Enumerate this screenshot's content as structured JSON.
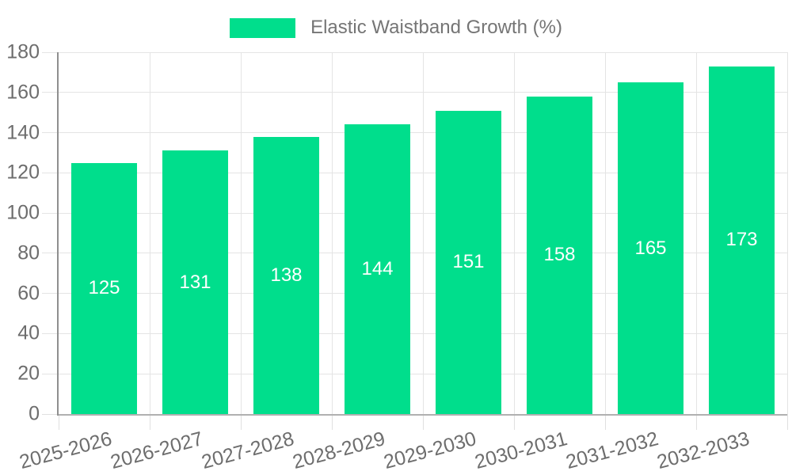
{
  "legend": {
    "label": "Elastic Waistband Growth (%)"
  },
  "colors": {
    "bar": "#00de8c",
    "bar_label": "#ffffff",
    "grid": "#e4e4e4",
    "tick": "#e0e0e0",
    "axis_y": "#8f8f8f",
    "axis_x": "#b0b0b0",
    "axis_label": "#6d6d6d",
    "legend_text": "#757575"
  },
  "chart_data": {
    "type": "bar",
    "title": "Elastic Waistband Growth (%)",
    "categories": [
      "2025-2026",
      "2026-2027",
      "2027-2028",
      "2028-2029",
      "2029-2030",
      "2030-2031",
      "2031-2032",
      "2032-2033"
    ],
    "values": [
      125,
      131,
      138,
      144,
      151,
      158,
      165,
      173
    ],
    "series": [
      {
        "name": "Elastic Waistband Growth (%)",
        "values": [
          125,
          131,
          138,
          144,
          151,
          158,
          165,
          173
        ]
      }
    ],
    "xlabel": "",
    "ylabel": "",
    "ylim": [
      0,
      180
    ],
    "yticks": [
      0,
      20,
      40,
      60,
      80,
      100,
      120,
      140,
      160,
      180
    ],
    "grid": true,
    "legend_position": "top",
    "bar_value_labels": true,
    "x_label_rotation_deg": -15
  }
}
